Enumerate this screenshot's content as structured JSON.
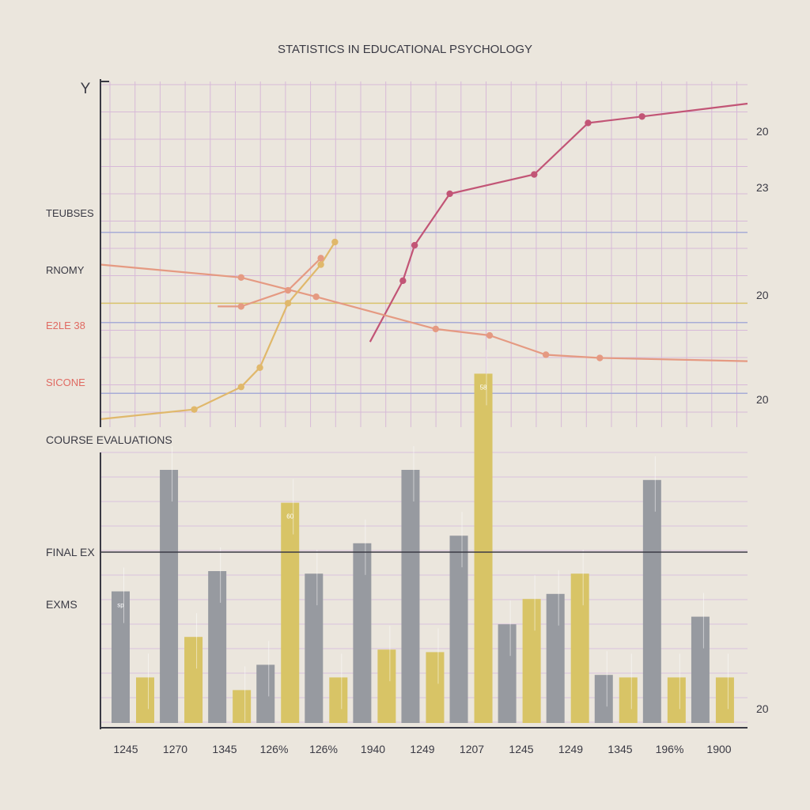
{
  "chart_data": {
    "title": "STATISTICS IN EDUCATIONAL PSYCHOLOGY",
    "ylabel": "Y",
    "upper_panel": {
      "type": "line",
      "left_labels": [
        {
          "text": "TEUBSES",
          "color": "#3a3a44"
        },
        {
          "text": "RNOMY",
          "color": "#3a3a44"
        },
        {
          "text": "E2LE 38",
          "color": "#e06a62"
        },
        {
          "text": "SICONE",
          "color": "#e06a62"
        }
      ],
      "right_labels": [
        "20",
        "23",
        "20",
        "20"
      ],
      "reference_levels": [
        {
          "y": 0.6,
          "color": "#a7acd6"
        },
        {
          "y": 0.38,
          "color": "#d9c46c"
        },
        {
          "y": 0.32,
          "color": "#a7acd6"
        },
        {
          "y": 0.1,
          "color": "#a7acd6"
        }
      ],
      "series": [
        {
          "color": "#c25576",
          "points": [
            [
              11.5,
              0.26
            ],
            [
              12.9,
              0.45
            ],
            [
              13.4,
              0.56
            ],
            [
              14.9,
              0.72
            ],
            [
              18.5,
              0.78
            ],
            [
              20.8,
              0.94
            ],
            [
              23.1,
              0.96
            ],
            [
              27.6,
              1.0
            ]
          ]
        },
        {
          "color": "#e59a82",
          "points": [
            [
              0,
              0.5
            ],
            [
              6.0,
              0.46
            ],
            [
              9.2,
              0.4
            ],
            [
              14.3,
              0.3
            ],
            [
              16.6,
              0.28
            ],
            [
              19.0,
              0.22
            ],
            [
              21.3,
              0.21
            ],
            [
              27.6,
              0.2
            ]
          ]
        },
        {
          "color": "#e0b86b",
          "points": [
            [
              0,
              0.02
            ],
            [
              4.0,
              0.05
            ],
            [
              6.0,
              0.12
            ],
            [
              6.8,
              0.18
            ],
            [
              8.0,
              0.38
            ],
            [
              9.4,
              0.5
            ],
            [
              10.0,
              0.57
            ]
          ]
        },
        {
          "color": "#e59a82",
          "points": [
            [
              5.0,
              0.37
            ],
            [
              6.0,
              0.37
            ],
            [
              8.0,
              0.42
            ],
            [
              9.4,
              0.52
            ]
          ]
        }
      ]
    },
    "lower_panel": {
      "type": "bar",
      "panel_label": "COURSE   EVALUATIONS",
      "left_labels": [
        "FINAL EX",
        "EXMS"
      ],
      "right_label": "20",
      "categories": [
        "1245",
        "1270",
        "1345",
        "126%",
        "126%",
        "1940",
        "1249",
        "1207",
        "1245",
        "1249",
        "1345",
        "196%",
        "1900"
      ],
      "series": [
        {
          "color": "#979aa0",
          "values": [
            0.52,
            1.0,
            0.6,
            0.23,
            0.59,
            0.71,
            1.0,
            0.74,
            0.39,
            0.51,
            0.19,
            0.96,
            0.42
          ]
        },
        {
          "color": "#d8c466",
          "values": [
            0.18,
            0.34,
            0.13,
            0.87,
            0.18,
            0.29,
            0.28,
            1.38,
            0.49,
            0.59,
            0.18,
            0.18,
            0.18
          ]
        }
      ],
      "bar_tags": [
        {
          "category": 0,
          "series": 0,
          "text": "sp"
        },
        {
          "category": 3,
          "series": 1,
          "text": "60"
        },
        {
          "category": 7,
          "series": 1,
          "text": "58"
        }
      ]
    }
  }
}
